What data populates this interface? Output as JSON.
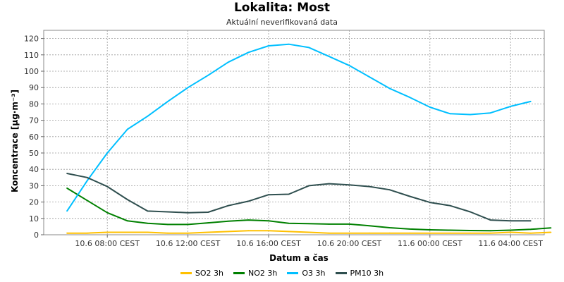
{
  "title": "Lokalita: Most",
  "subtitle": "Aktuální neverifikovaná data",
  "chart_data": {
    "type": "line",
    "title": "Lokalita: Most",
    "subtitle": "Aktuální neverifikovaná data",
    "xlabel": "Datum a čas",
    "ylabel": "Koncentrace [µg·m⁻³]",
    "ylim": [
      0,
      125
    ],
    "yticks": [
      0,
      10,
      20,
      30,
      40,
      50,
      60,
      70,
      80,
      90,
      100,
      110,
      120
    ],
    "x_start": "10.6 06:00 CEST",
    "x_step_hours": 1,
    "xticks": [
      {
        "hour_index": 2,
        "label": "10.6 08:00 CEST"
      },
      {
        "hour_index": 6,
        "label": "10.6 12:00 CEST"
      },
      {
        "hour_index": 10,
        "label": "10.6 16:00 CEST"
      },
      {
        "hour_index": 14,
        "label": "10.6 20:00 CEST"
      },
      {
        "hour_index": 18,
        "label": "11.6 00:00 CEST"
      },
      {
        "hour_index": 22,
        "label": "11.6 04:00 CEST"
      }
    ],
    "grid": true,
    "legend_position": "bottom",
    "series": [
      {
        "name": "SO2 3h",
        "color": "#ffc000",
        "values": [
          1.0,
          1.0,
          1.5,
          1.5,
          1.5,
          1.0,
          1.0,
          1.5,
          2.0,
          2.5,
          2.5,
          2.0,
          1.5,
          1.0,
          1.0,
          1.0,
          1.0,
          1.0,
          1.0,
          1.0,
          1.0,
          1.0,
          1.5,
          1.0,
          1.5
        ]
      },
      {
        "name": "NO2 3h",
        "color": "#008000",
        "values": [
          28.5,
          21.0,
          13.5,
          8.5,
          7.0,
          6.3,
          6.3,
          7.3,
          8.3,
          9.0,
          8.5,
          7.0,
          6.8,
          6.5,
          6.5,
          5.5,
          4.3,
          3.5,
          3.0,
          2.8,
          2.6,
          2.5,
          2.8,
          3.3,
          4.2
        ]
      },
      {
        "name": "O3 3h",
        "color": "#00bfff",
        "values": [
          14.5,
          33.0,
          50.0,
          64.5,
          72.5,
          81.5,
          90.0,
          97.5,
          105.5,
          111.5,
          115.5,
          116.5,
          114.5,
          109.0,
          103.5,
          96.5,
          89.5,
          84.0,
          78.0,
          74.0,
          73.5,
          74.5,
          78.5,
          81.5
        ]
      },
      {
        "name": "PM10 3h",
        "color": "#2f4f4f",
        "values": [
          37.5,
          35.0,
          29.5,
          21.5,
          14.5,
          14.0,
          13.5,
          13.8,
          17.8,
          20.5,
          24.5,
          24.8,
          30.0,
          31.2,
          30.5,
          29.5,
          27.5,
          23.5,
          19.8,
          17.8,
          14.0,
          9.0,
          8.5,
          8.5
        ]
      }
    ]
  }
}
